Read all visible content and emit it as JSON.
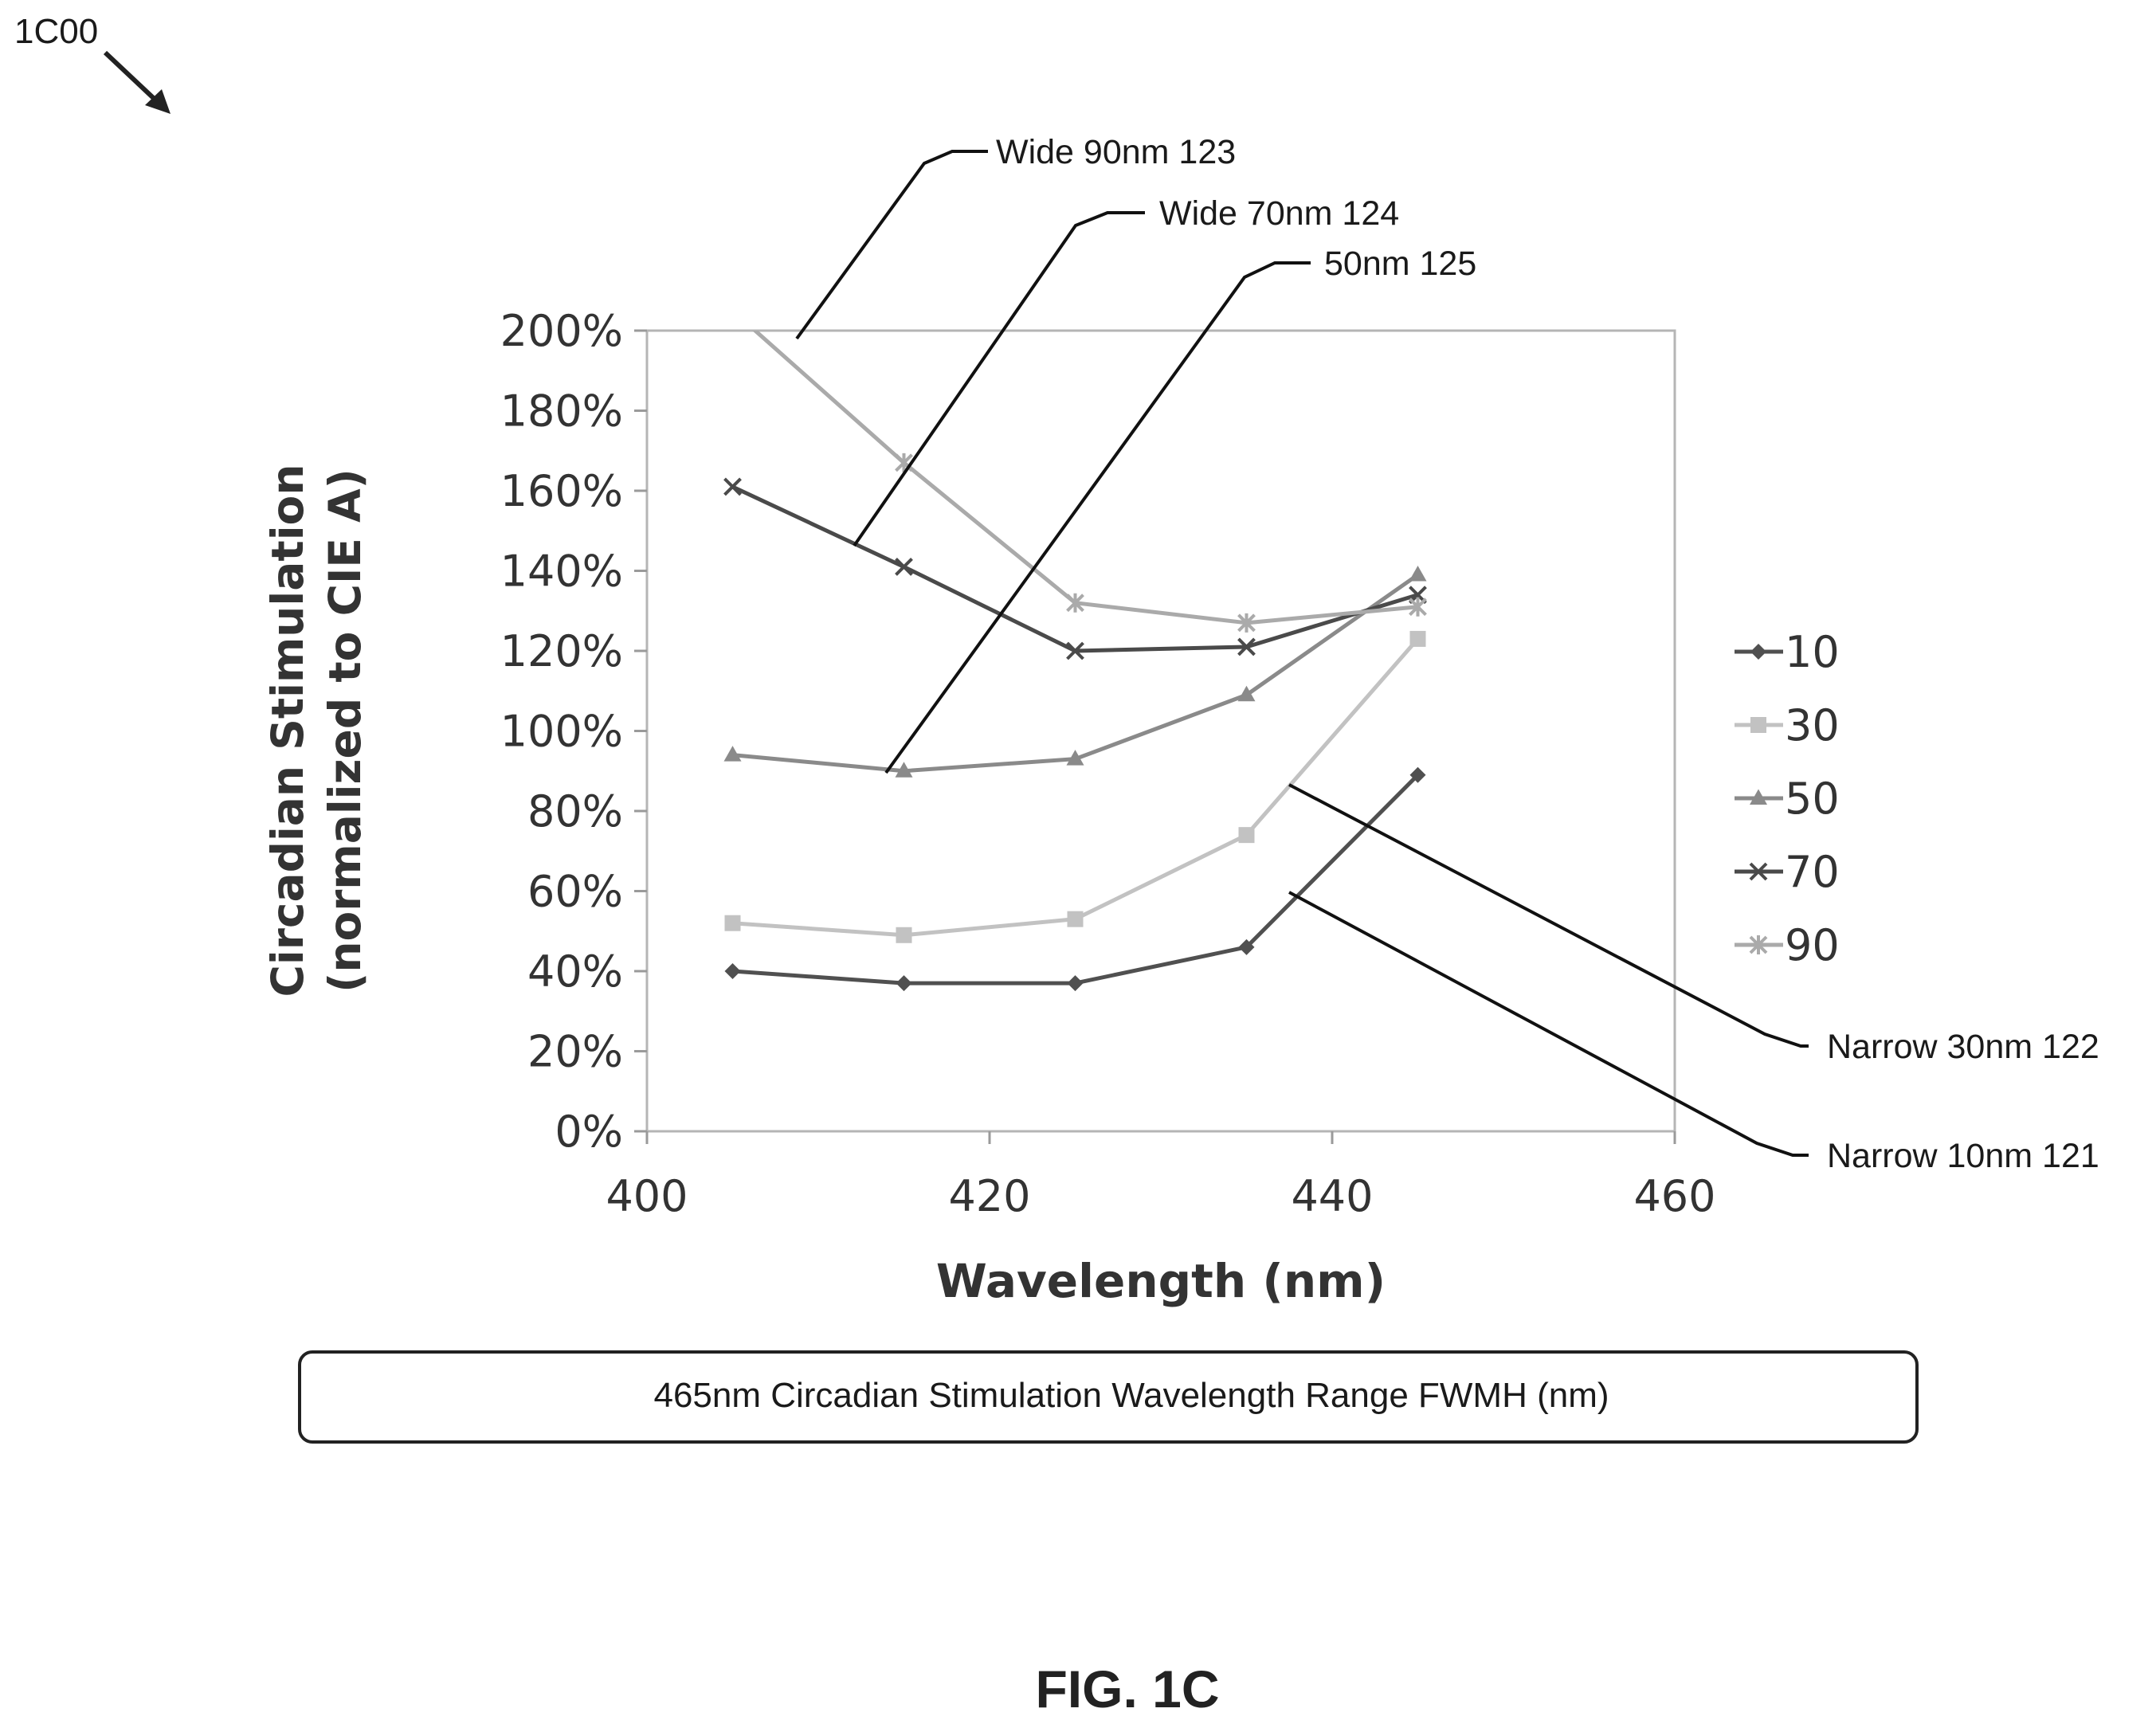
{
  "figure": {
    "ref_label": "1C00",
    "caption": "FIG. 1C",
    "bottom_box_text": "465nm Circadian Stimulation Wavelength Range FWMH (nm)"
  },
  "callouts": {
    "wide90": "Wide 90nm 123",
    "wide70": "Wide 70nm 124",
    "nm50": "50nm 125",
    "narrow30": "Narrow 30nm 122",
    "narrow10": "Narrow 10nm 121"
  },
  "chart_data": {
    "type": "line",
    "title": "",
    "xlabel": "Wavelength (nm)",
    "ylabel": "Circadian Stimulation (normalized to CIE A)",
    "ylabel_lines": [
      "Circadian Stimulation",
      "(normalized to CIE A)"
    ],
    "xlim": [
      400,
      460
    ],
    "ylim": [
      0,
      200
    ],
    "x_ticks": [
      400,
      420,
      440,
      460
    ],
    "x_tick_labels": [
      "400",
      "420",
      "440",
      "460"
    ],
    "y_ticks": [
      0,
      20,
      40,
      60,
      80,
      100,
      120,
      140,
      160,
      180,
      200
    ],
    "y_tick_labels": [
      "0%",
      "20%",
      "40%",
      "60%",
      "80%",
      "100%",
      "120%",
      "140%",
      "160%",
      "180%",
      "200%"
    ],
    "grid": false,
    "legend_position": "right",
    "x": [
      405,
      415,
      425,
      435,
      445
    ],
    "series": [
      {
        "name": "10",
        "values": [
          40,
          37,
          37,
          46,
          89
        ],
        "color": "#505050",
        "marker": "diamond"
      },
      {
        "name": "30",
        "values": [
          52,
          49,
          53,
          74,
          123
        ],
        "color": "#c2c2c2",
        "marker": "square"
      },
      {
        "name": "50",
        "values": [
          94,
          90,
          93,
          109,
          139
        ],
        "color": "#8a8a8a",
        "marker": "triangle"
      },
      {
        "name": "70",
        "values": [
          161,
          141,
          120,
          121,
          134
        ],
        "color": "#4a4a4a",
        "marker": "x"
      },
      {
        "name": "90",
        "values": [
          205,
          167,
          132,
          127,
          131
        ],
        "color": "#aaaaaa",
        "marker": "star"
      }
    ]
  }
}
